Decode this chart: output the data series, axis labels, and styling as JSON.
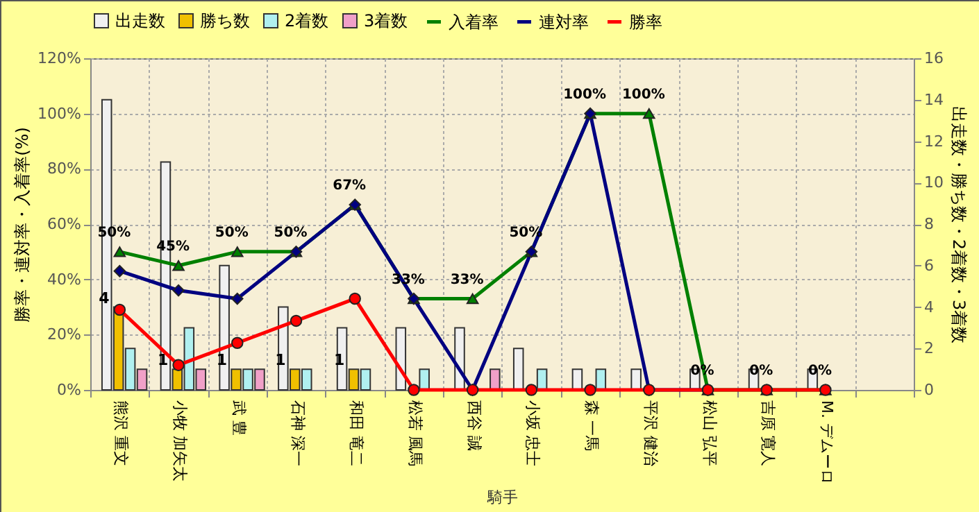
{
  "chart_data": {
    "type": "bar",
    "xlabel": "騎手",
    "ylabel": "勝率・連対率・入着率(%)",
    "y2label": "出走数・勝ち数・2着数・3着数",
    "categories": [
      "熊沢 重文",
      "小牧 加矢太",
      "武 豊",
      "石神 深一",
      "和田 竜二",
      "松若 風馬",
      "西谷 誠",
      "小坂 忠士",
      "森 一馬",
      "平沢 健治",
      "松山 弘平",
      "吉原 寛人",
      "M. デムーロ",
      null
    ],
    "series": [
      {
        "name": "出走数",
        "axis": "y2",
        "color": "#f0f0f0",
        "values": [
          14,
          11,
          6,
          4,
          3,
          3,
          3,
          2,
          1,
          1,
          1,
          1,
          1,
          null
        ]
      },
      {
        "name": "勝ち数",
        "axis": "y2",
        "color": "#f0c000",
        "values": [
          4,
          1,
          1,
          1,
          1,
          0,
          0,
          0,
          0,
          0,
          0,
          0,
          0,
          null
        ],
        "value_labels": [
          "4",
          "1",
          "1",
          "1",
          "1",
          null,
          null,
          null,
          null,
          null,
          null,
          null,
          null,
          null
        ]
      },
      {
        "name": "2着数",
        "axis": "y2",
        "color": "#b0f0f0",
        "values": [
          2,
          3,
          1,
          1,
          1,
          1,
          0,
          1,
          1,
          0,
          0,
          0,
          0,
          null
        ]
      },
      {
        "name": "3着数",
        "axis": "y2",
        "color": "#f0a0c8",
        "values": [
          1,
          1,
          1,
          0,
          0,
          0,
          1,
          0,
          0,
          0,
          0,
          0,
          0,
          null
        ]
      },
      {
        "name": "入着率",
        "type": "line",
        "color": "#008000",
        "marker": "triangle",
        "values": [
          50,
          45,
          50,
          50,
          67,
          33,
          33,
          50,
          100,
          100,
          0,
          0,
          0,
          null
        ],
        "value_labels": [
          "50%",
          "45%",
          "50%",
          "50%",
          "67%",
          "33%",
          "33%",
          "50%",
          "100%",
          "100%",
          "0%",
          "0%",
          "0%",
          null
        ]
      },
      {
        "name": "連対率",
        "type": "line",
        "color": "#000080",
        "marker": "diamond",
        "values": [
          43,
          36,
          33,
          50,
          67,
          33,
          0,
          50,
          100,
          0,
          0,
          null,
          null,
          null
        ]
      },
      {
        "name": "勝率",
        "type": "line",
        "color": "#ff0000",
        "marker": "circle",
        "values": [
          29,
          9,
          17,
          25,
          33,
          0,
          0,
          0,
          0,
          0,
          0,
          0,
          0,
          null
        ]
      }
    ],
    "ylim": [
      0,
      120
    ],
    "yticks": [
      {
        "value": 0,
        "label": "0%"
      },
      {
        "value": 20,
        "label": "20%"
      },
      {
        "value": 40,
        "label": "40%"
      },
      {
        "value": 60,
        "label": "60%"
      },
      {
        "value": 80,
        "label": "80%"
      },
      {
        "value": 100,
        "label": "100%"
      },
      {
        "value": 120,
        "label": "120%"
      }
    ],
    "y2lim": [
      0,
      16
    ],
    "y2ticks": [
      0,
      2,
      4,
      6,
      8,
      10,
      12,
      14,
      16
    ],
    "grid": true,
    "legend": "top"
  }
}
